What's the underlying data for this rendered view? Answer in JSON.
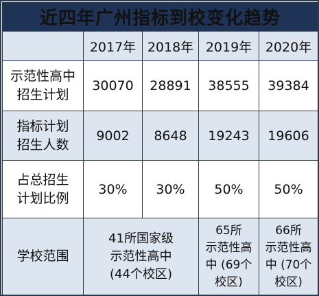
{
  "title": "近四年广州指标到校变化趋势",
  "years": [
    "2017年",
    "2018年",
    "2019年",
    "2020年"
  ],
  "rows": [
    {
      "label_lines": [
        "示范性高中",
        "招生计划"
      ],
      "values": [
        "30070",
        "28891",
        "38555",
        "39384"
      ]
    },
    {
      "label_lines": [
        "指标计划",
        "招生人数"
      ],
      "values": [
        "9002",
        "8648",
        "19243",
        "19606"
      ]
    },
    {
      "label_lines": [
        "占总招生",
        "计划比例"
      ],
      "values": [
        "30%",
        "30%",
        "50%",
        "50%"
      ]
    }
  ],
  "scope": {
    "label": "学校范围",
    "y2017_2018": [
      "41所国家级",
      "示范性高中",
      "(44个校区)"
    ],
    "y2019": [
      "65所",
      "示范性高",
      "中 (69个",
      "校区)"
    ],
    "y2020": [
      "66所",
      "示范性高",
      "中 (70个",
      "校区)"
    ]
  },
  "colors": {
    "title_bg": "#1f3357",
    "band_bg": "#dde5f1",
    "border": "#2a3b58"
  }
}
